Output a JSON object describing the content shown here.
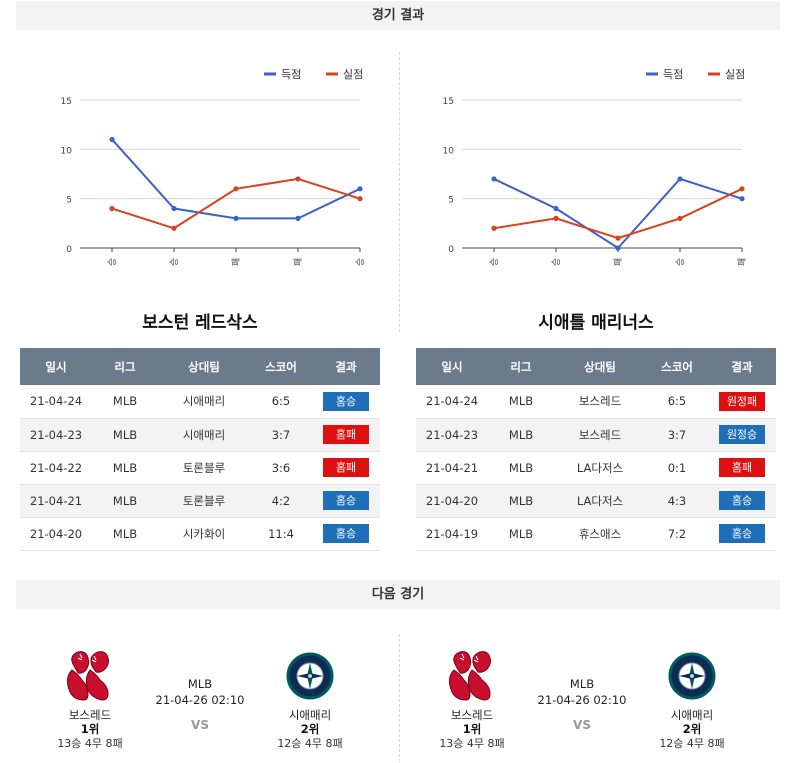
{
  "sections": {
    "results_title": "경기 결과",
    "next_title": "다음 경기"
  },
  "colors": {
    "scored": "#3a62c9",
    "allowed": "#d8431f",
    "win_badge": "#1f6fb8",
    "lose_badge": "#dd1111",
    "table_header": "#6c7b8b"
  },
  "legend": {
    "scored": "득점",
    "allowed": "실점"
  },
  "chart_data": [
    {
      "type": "line",
      "categories": [
        "승",
        "승",
        "패",
        "패",
        "승"
      ],
      "series": [
        {
          "name": "득점",
          "values": [
            11,
            4,
            3,
            3,
            6
          ]
        },
        {
          "name": "실점",
          "values": [
            4,
            2,
            6,
            7,
            5
          ]
        }
      ],
      "yticks": [
        "0",
        "5",
        "10",
        "15"
      ],
      "ylim": [
        0,
        15
      ],
      "grid": true,
      "legend_position": "top-right"
    },
    {
      "type": "line",
      "categories": [
        "승",
        "승",
        "패",
        "승",
        "패"
      ],
      "series": [
        {
          "name": "득점",
          "values": [
            7,
            4,
            0,
            7,
            5
          ]
        },
        {
          "name": "실점",
          "values": [
            2,
            3,
            1,
            3,
            6
          ]
        }
      ],
      "yticks": [
        "0",
        "5",
        "10",
        "15"
      ],
      "ylim": [
        0,
        15
      ],
      "grid": true,
      "legend_position": "top-right"
    }
  ],
  "teams": [
    {
      "title": "보스턴 레드삭스",
      "headers": [
        "일시",
        "리그",
        "상대팀",
        "스코어",
        "결과"
      ],
      "games": [
        {
          "date": "21-04-24",
          "league": "MLB",
          "opponent": "시애매리",
          "score": "6:5",
          "result": "홈승",
          "win": true
        },
        {
          "date": "21-04-23",
          "league": "MLB",
          "opponent": "시애매리",
          "score": "3:7",
          "result": "홈패",
          "win": false
        },
        {
          "date": "21-04-22",
          "league": "MLB",
          "opponent": "토론블루",
          "score": "3:6",
          "result": "홈패",
          "win": false
        },
        {
          "date": "21-04-21",
          "league": "MLB",
          "opponent": "토론블루",
          "score": "4:2",
          "result": "홈승",
          "win": true
        },
        {
          "date": "21-04-20",
          "league": "MLB",
          "opponent": "시카화이",
          "score": "11:4",
          "result": "홈승",
          "win": true
        }
      ]
    },
    {
      "title": "시애틀 매리너스",
      "headers": [
        "일시",
        "리그",
        "상대팀",
        "스코어",
        "결과"
      ],
      "games": [
        {
          "date": "21-04-24",
          "league": "MLB",
          "opponent": "보스레드",
          "score": "6:5",
          "result": "원정패",
          "win": false
        },
        {
          "date": "21-04-23",
          "league": "MLB",
          "opponent": "보스레드",
          "score": "3:7",
          "result": "원정승",
          "win": true
        },
        {
          "date": "21-04-21",
          "league": "MLB",
          "opponent": "LA다저스",
          "score": "0:1",
          "result": "홈패",
          "win": false
        },
        {
          "date": "21-04-20",
          "league": "MLB",
          "opponent": "LA다저스",
          "score": "4:3",
          "result": "홈승",
          "win": true
        },
        {
          "date": "21-04-19",
          "league": "MLB",
          "opponent": "휴스애스",
          "score": "7:2",
          "result": "홈승",
          "win": true
        }
      ]
    }
  ],
  "next_matches": [
    {
      "league": "MLB",
      "datetime": "21-04-26 02:10",
      "vs": "VS",
      "home": {
        "name": "보스레드",
        "rank": "1위",
        "record": "13승 4무 8패",
        "logo": "red-sox-logo"
      },
      "away": {
        "name": "시애매리",
        "rank": "2위",
        "record": "12승 4무 8패",
        "logo": "mariners-logo"
      }
    },
    {
      "league": "MLB",
      "datetime": "21-04-26 02:10",
      "vs": "VS",
      "home": {
        "name": "보스레드",
        "rank": "1위",
        "record": "13승 4무 8패",
        "logo": "red-sox-logo"
      },
      "away": {
        "name": "시애매리",
        "rank": "2위",
        "record": "12승 4무 8패",
        "logo": "mariners-logo"
      }
    }
  ]
}
